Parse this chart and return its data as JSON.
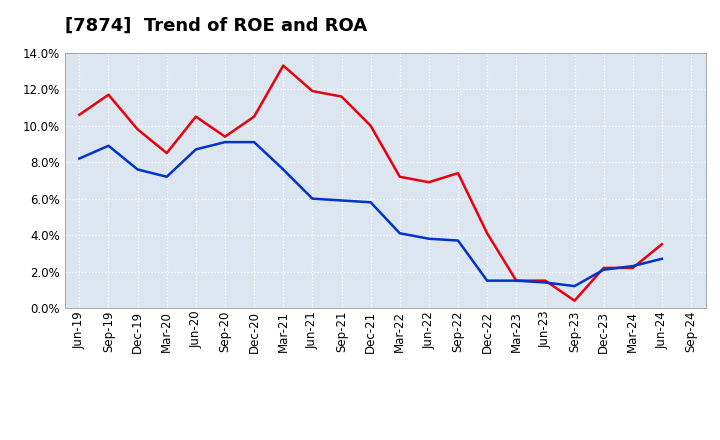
{
  "title": "[7874]  Trend of ROE and ROA",
  "labels": [
    "Jun-19",
    "Sep-19",
    "Dec-19",
    "Mar-20",
    "Jun-20",
    "Sep-20",
    "Dec-20",
    "Mar-21",
    "Jun-21",
    "Sep-21",
    "Dec-21",
    "Mar-22",
    "Jun-22",
    "Sep-22",
    "Dec-22",
    "Mar-23",
    "Jun-23",
    "Sep-23",
    "Dec-23",
    "Mar-24",
    "Jun-24",
    "Sep-24"
  ],
  "ROE": [
    10.6,
    11.7,
    9.8,
    8.5,
    10.5,
    9.4,
    10.5,
    13.3,
    11.9,
    11.6,
    10.0,
    7.2,
    6.9,
    7.4,
    4.1,
    1.5,
    1.5,
    0.4,
    2.2,
    2.2,
    3.5,
    null
  ],
  "ROA": [
    8.2,
    8.9,
    7.6,
    7.2,
    8.7,
    9.1,
    9.1,
    7.6,
    6.0,
    5.9,
    5.8,
    4.1,
    3.8,
    3.7,
    1.5,
    1.5,
    1.4,
    1.2,
    2.1,
    2.3,
    2.7,
    null
  ],
  "roe_color": "#e8000d",
  "roa_color": "#0033cc",
  "ylim": [
    0,
    14.0
  ],
  "yticks": [
    0.0,
    2.0,
    4.0,
    6.0,
    8.0,
    10.0,
    12.0,
    14.0
  ],
  "background_color": "#ffffff",
  "plot_bg_color": "#dce6f1",
  "grid_color": "#ffffff",
  "title_fontsize": 13,
  "axis_fontsize": 8.5,
  "legend_fontsize": 10,
  "line_width": 1.8
}
